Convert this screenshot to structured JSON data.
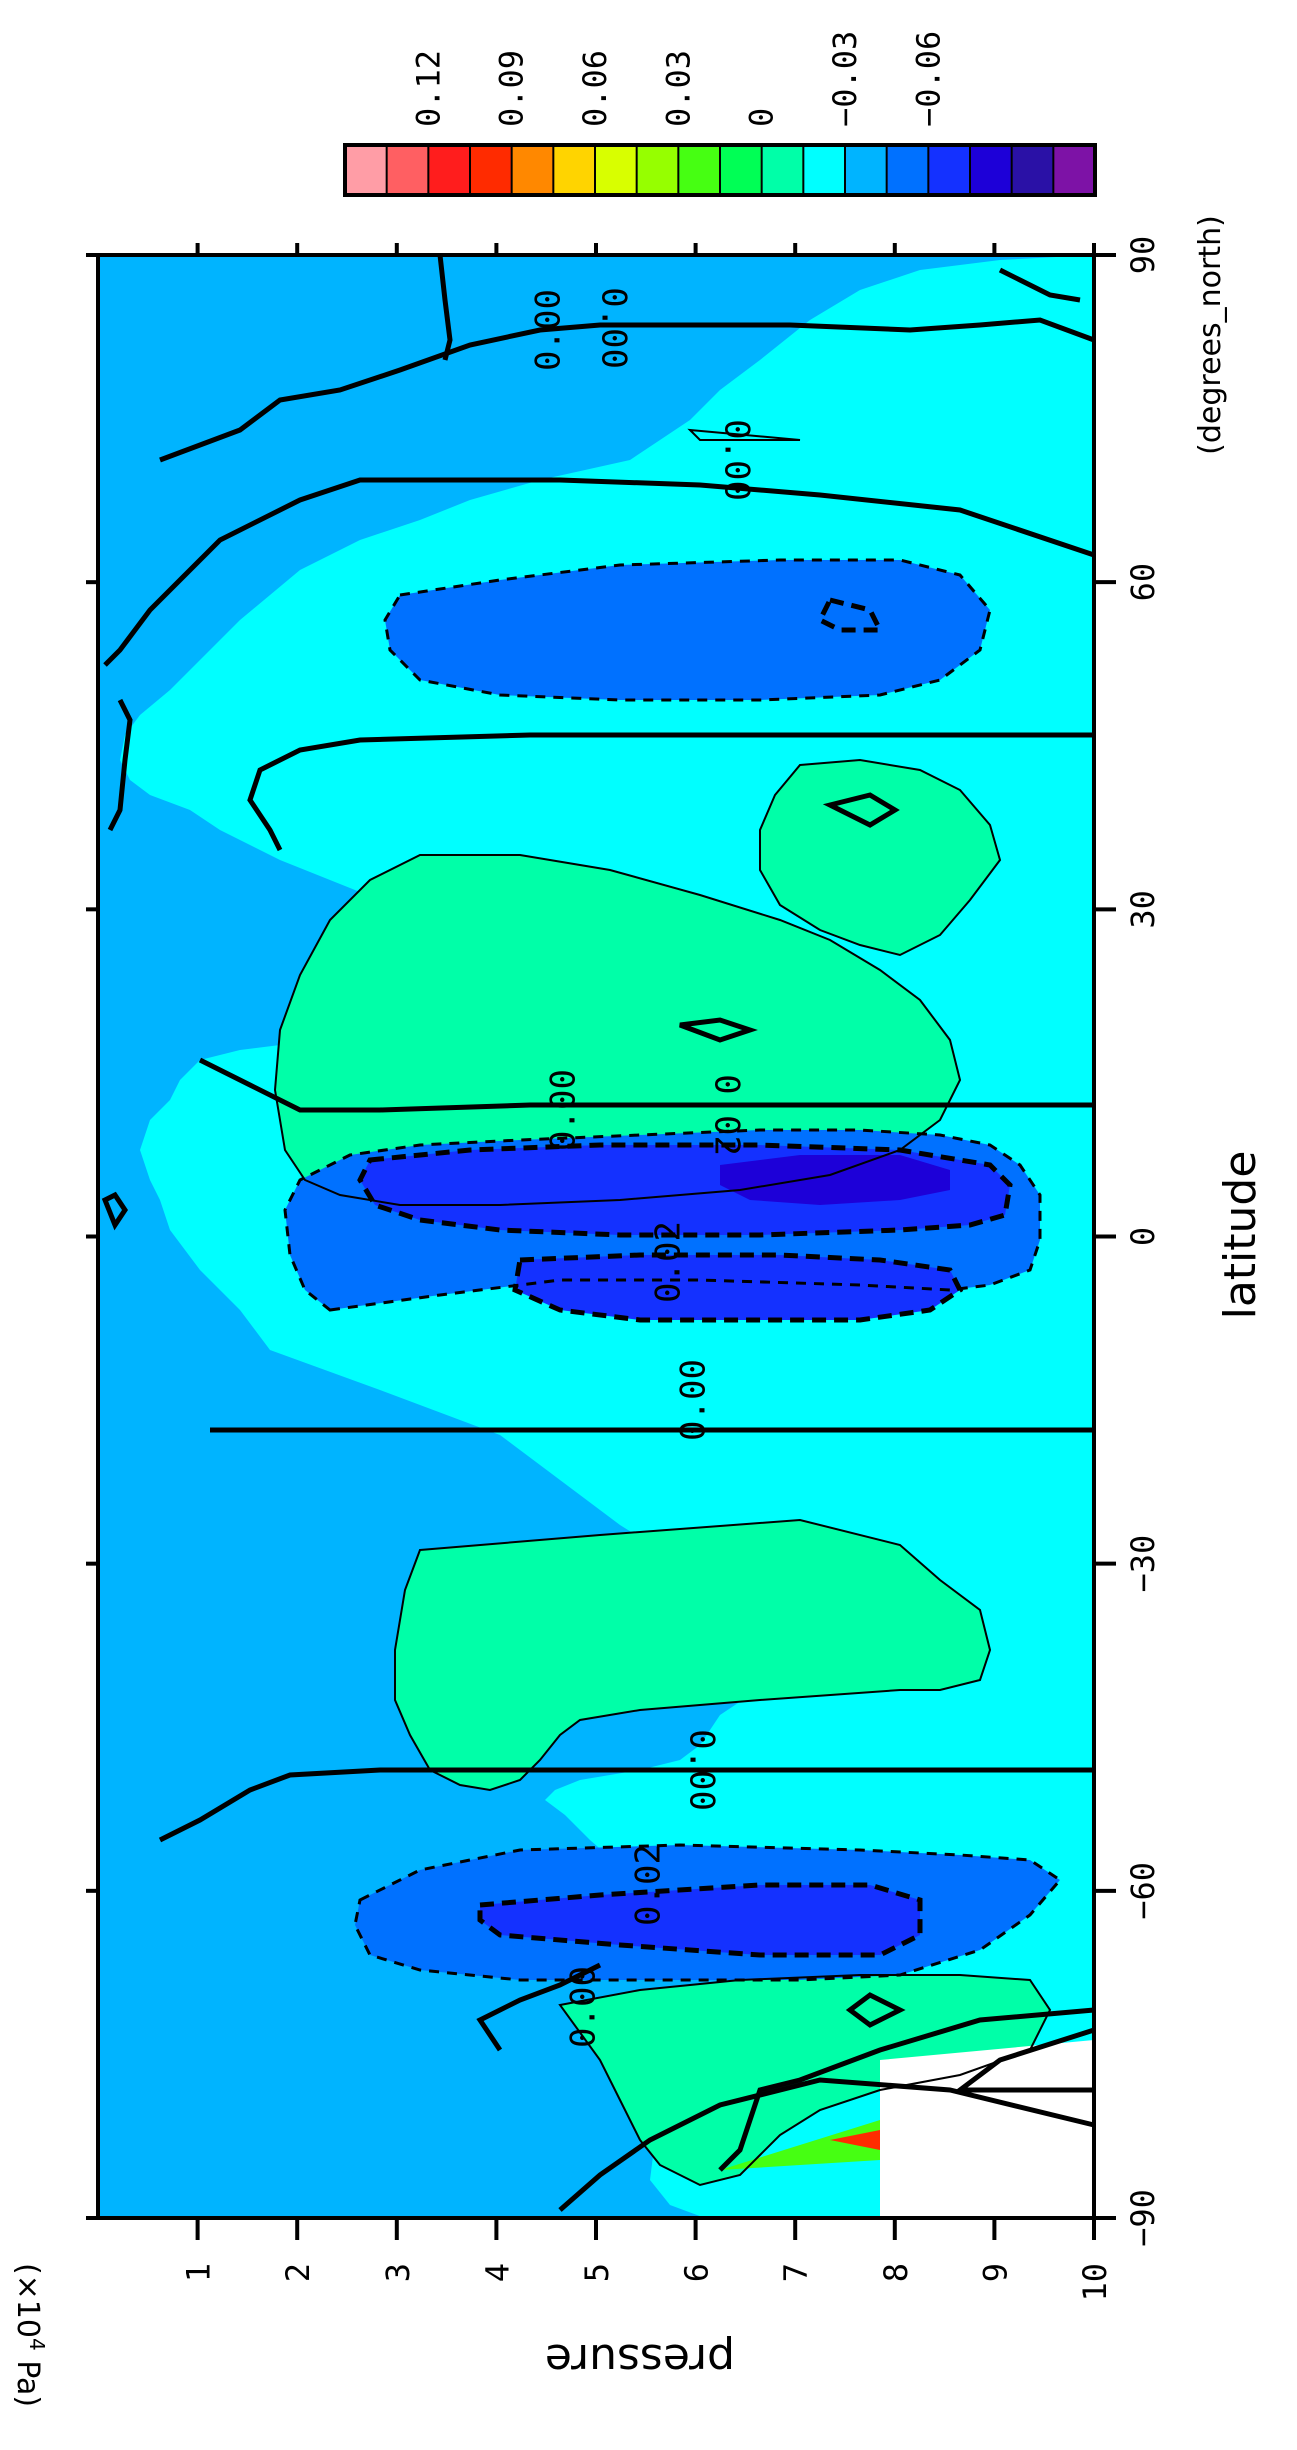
{
  "chart_data": {
    "type": "heatmap",
    "subtype": "filled contour, latitude-pressure cross section",
    "orientation": "rotated 90 degrees clockwise (latitude runs top-to-bottom, pressure runs left-to-right)",
    "title": "",
    "xlabel": "latitude",
    "x_units": "(degrees_north)",
    "ylabel": "pressure",
    "y_units": "(×10",
    "y_units_exp": "4",
    "y_units_tail": " Pa)",
    "xlim": [
      -90,
      90
    ],
    "ylim": [
      0,
      10
    ],
    "x_ticks": [
      -90,
      -60,
      -30,
      0,
      30,
      60,
      90
    ],
    "x_tick_labels": [
      "−90",
      "−60",
      "−30",
      "0",
      "30",
      "60",
      "90"
    ],
    "y_ticks": [
      1,
      2,
      3,
      4,
      5,
      6,
      7,
      8,
      9,
      10
    ],
    "y_tick_labels": [
      "1",
      "2",
      "3",
      "4",
      "5",
      "6",
      "7",
      "8",
      "9",
      "10"
    ],
    "colorbar": {
      "levels": [
        0.135,
        0.12,
        0.105,
        0.09,
        0.075,
        0.06,
        0.045,
        0.03,
        0.015,
        0,
        -0.015,
        -0.03,
        -0.045,
        -0.06
      ],
      "colors": [
        "#ff9da6",
        "#ff5f62",
        "#ff1d1d",
        "#ff2b00",
        "#ff8800",
        "#ffd400",
        "#d8ff00",
        "#96ff00",
        "#46ff12",
        "#00ff55",
        "#00ffa8",
        "#00ffff",
        "#00b4ff",
        "#0071ff",
        "#1431ff",
        "#1d00d8",
        "#2a11a6",
        "#7d12a6"
      ],
      "tick_labels": [
        "0.12",
        "0.09",
        "0.06",
        "0.03",
        "0",
        "−0.03",
        "−0.06"
      ],
      "tick_values": [
        0.12,
        0.09,
        0.06,
        0.03,
        0,
        -0.03,
        -0.06
      ]
    },
    "contour_labels": [
      "0.00",
      "0.00",
      "0.00",
      "0.00",
      "0.00",
      "0.00",
      "0.00",
      "0.02",
      "0.02",
      "0.02"
    ],
    "regions": [
      {
        "name": "background",
        "value": -0.01,
        "color": "#00b4ff"
      },
      {
        "name": "tropospheric-band",
        "value": 0.005,
        "color": "#00ffff"
      },
      {
        "name": "positive-southern-subtropics",
        "value": 0.02,
        "color": "#00ffa8"
      },
      {
        "name": "positive-northern-subtropics",
        "value": 0.02,
        "color": "#00ffa8"
      },
      {
        "name": "positive-northern-midlat",
        "value": 0.02,
        "color": "#00ffa8"
      },
      {
        "name": "positive-southern-highlat",
        "value": 0.02,
        "color": "#00ffa8"
      },
      {
        "name": "negative-equatorial-north",
        "value": -0.025,
        "color": "#0071ff"
      },
      {
        "name": "negative-equatorial-core",
        "value": -0.04,
        "color": "#1431ff"
      },
      {
        "name": "negative-equatorial-deep",
        "value": -0.05,
        "color": "#1d00d8"
      },
      {
        "name": "negative-southern-midlat",
        "value": -0.025,
        "color": "#0071ff"
      },
      {
        "name": "negative-southern-midlat-core",
        "value": -0.035,
        "color": "#1431ff"
      },
      {
        "name": "negative-northern-highlat",
        "value": -0.025,
        "color": "#0071ff"
      }
    ]
  }
}
